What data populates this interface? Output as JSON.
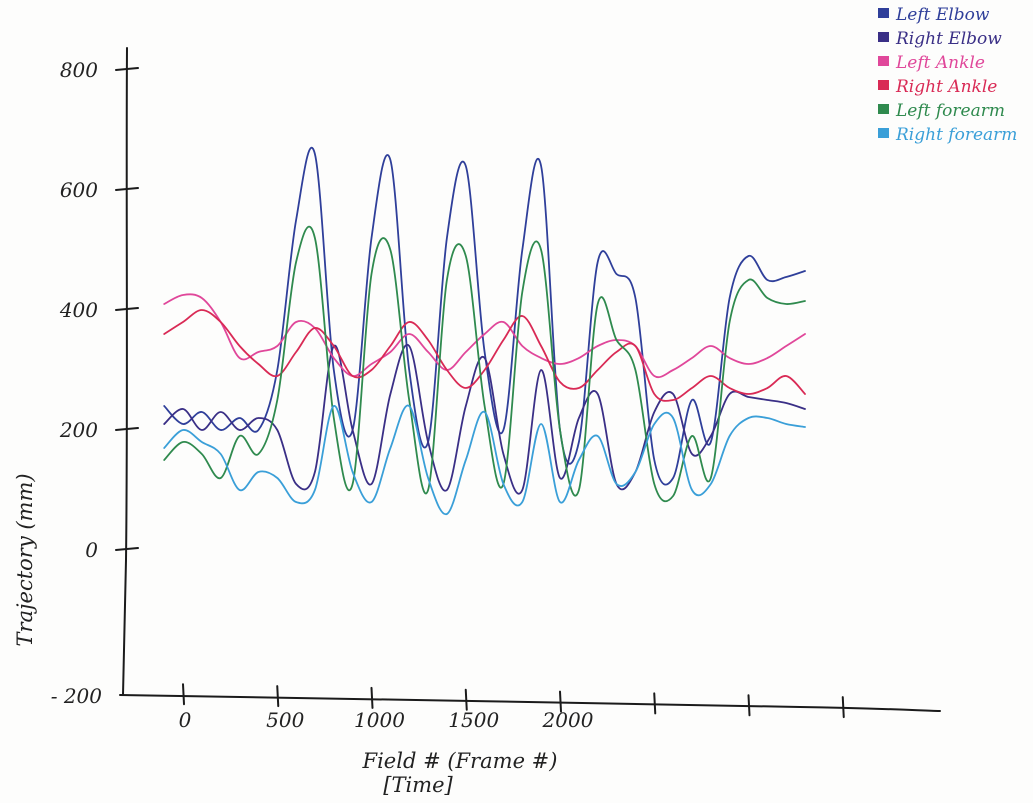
{
  "chart_data": {
    "type": "line",
    "title": "",
    "xlabel": "Field # (Frame #)",
    "xlabel_sub": "[Time]",
    "ylabel": "Trajectory (mm)",
    "xticks": [
      "0",
      "500",
      "1000",
      "1500",
      "2000"
    ],
    "yticks": [
      "800",
      "600",
      "400",
      "200",
      "0",
      "- 200"
    ],
    "xlim": [
      -150,
      3400
    ],
    "ylim": [
      -250,
      830
    ],
    "grid": false,
    "legend_position": "top-right",
    "x": [
      -100,
      0,
      100,
      200,
      300,
      400,
      500,
      600,
      700,
      800,
      900,
      1000,
      1100,
      1200,
      1300,
      1400,
      1500,
      1600,
      1700,
      1800,
      1900,
      2000,
      2100,
      2200,
      2300,
      2400,
      2500,
      2600,
      2700,
      2800,
      2900,
      3000,
      3100,
      3200,
      3300
    ],
    "series": [
      {
        "name": "Left Elbow",
        "color": "#2f3f9a",
        "values": [
          240,
          210,
          230,
          200,
          220,
          200,
          300,
          550,
          660,
          300,
          200,
          520,
          650,
          300,
          180,
          520,
          640,
          330,
          200,
          500,
          640,
          200,
          180,
          480,
          460,
          420,
          150,
          120,
          250,
          180,
          420,
          490,
          450,
          455,
          465
        ]
      },
      {
        "name": "Right Elbow",
        "color": "#3a2f86",
        "values": [
          210,
          235,
          200,
          230,
          200,
          220,
          200,
          110,
          130,
          340,
          200,
          110,
          260,
          340,
          180,
          100,
          240,
          320,
          160,
          100,
          300,
          120,
          220,
          260,
          110,
          130,
          230,
          260,
          160,
          190,
          260,
          255,
          250,
          245,
          235
        ]
      },
      {
        "name": "Left Ankle",
        "color": "#e0479a",
        "values": [
          410,
          425,
          420,
          380,
          320,
          330,
          340,
          380,
          370,
          320,
          290,
          310,
          330,
          360,
          330,
          300,
          330,
          360,
          380,
          340,
          320,
          310,
          320,
          340,
          350,
          340,
          290,
          300,
          320,
          340,
          320,
          310,
          320,
          340,
          360
        ]
      },
      {
        "name": "Right Ankle",
        "color": "#d92a55",
        "values": [
          360,
          380,
          400,
          380,
          340,
          310,
          290,
          330,
          370,
          340,
          290,
          300,
          340,
          380,
          350,
          300,
          270,
          300,
          350,
          390,
          340,
          280,
          270,
          300,
          330,
          340,
          260,
          250,
          270,
          290,
          270,
          260,
          270,
          290,
          260
        ]
      },
      {
        "name": "Left forearm",
        "color": "#2f8a4e",
        "values": [
          150,
          180,
          160,
          120,
          190,
          160,
          250,
          480,
          520,
          220,
          110,
          460,
          500,
          250,
          100,
          450,
          490,
          240,
          110,
          430,
          500,
          200,
          100,
          410,
          350,
          300,
          110,
          90,
          190,
          120,
          380,
          450,
          420,
          410,
          415
        ]
      },
      {
        "name": "Right forearm",
        "color": "#3a9fd8",
        "values": [
          170,
          200,
          180,
          160,
          100,
          130,
          120,
          80,
          100,
          240,
          130,
          80,
          170,
          240,
          120,
          60,
          150,
          230,
          110,
          80,
          210,
          80,
          150,
          190,
          110,
          130,
          210,
          220,
          100,
          110,
          190,
          220,
          220,
          210,
          205
        ]
      }
    ]
  }
}
